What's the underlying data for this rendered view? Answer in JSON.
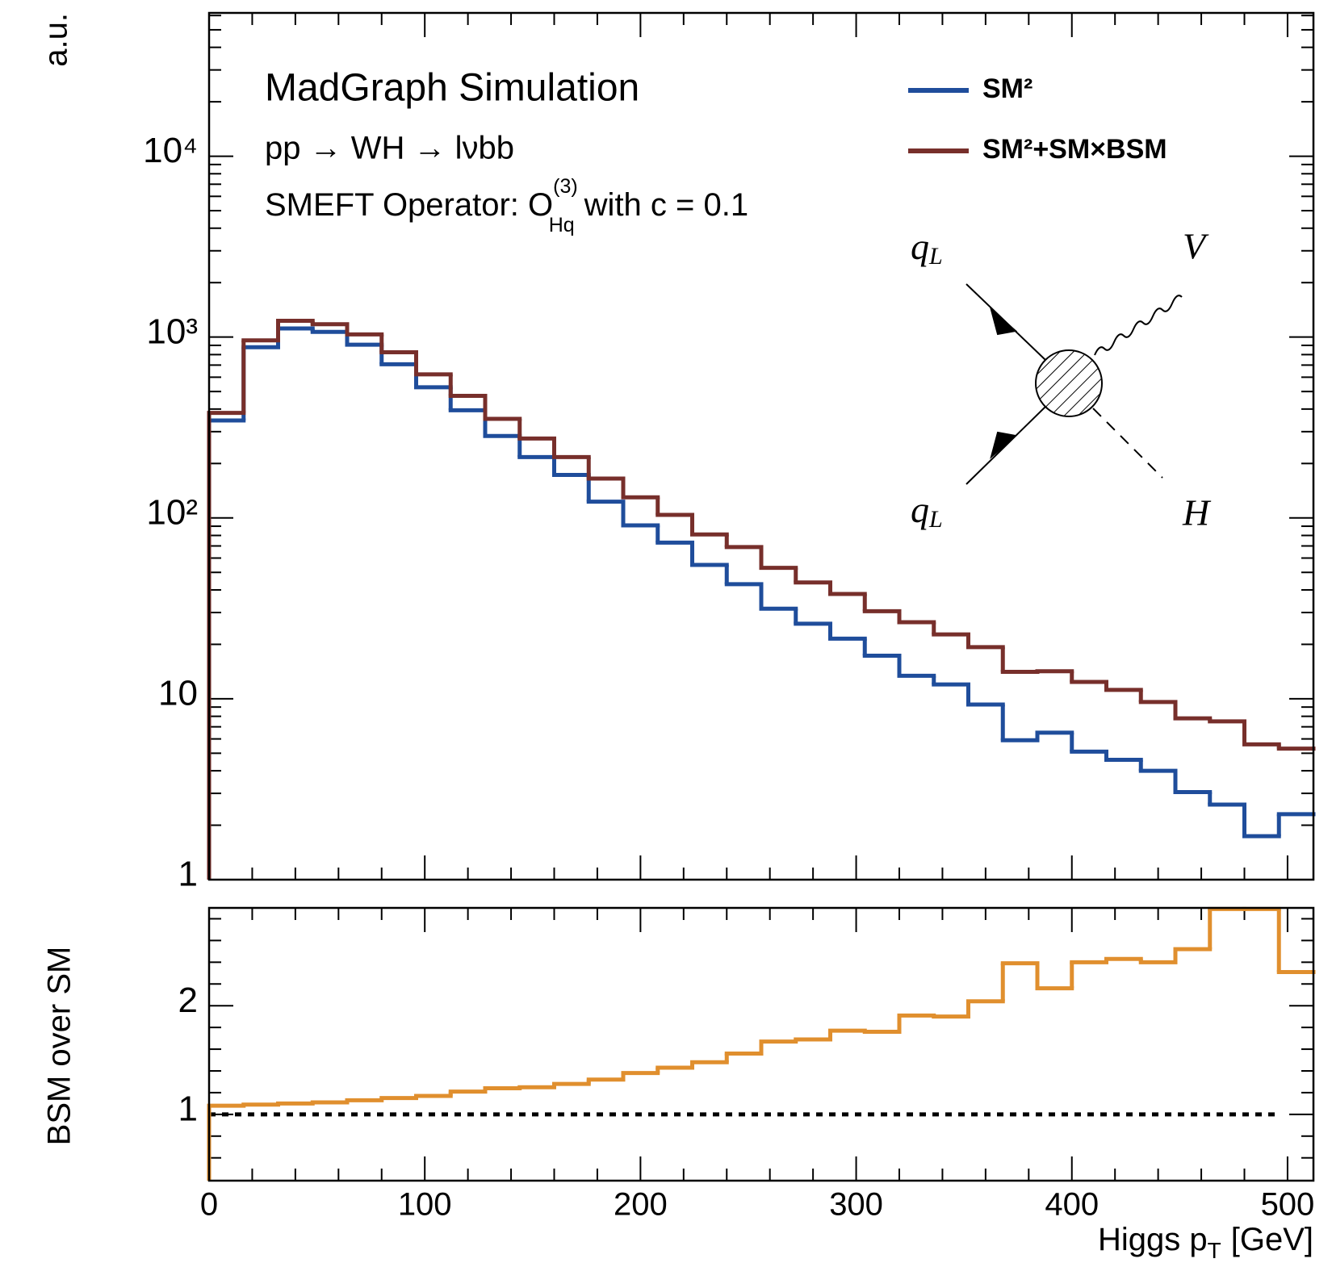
{
  "chart_data": [
    {
      "type": "histogram",
      "title": "MadGraph Simulation",
      "annotations": {
        "process": "pp → WH → lνbb",
        "operator": {
          "text": "SMEFT Operator: O",
          "superscript": "(3)",
          "subscript": "Hq",
          "tail": "with c = 0.1"
        }
      },
      "diagram_labels": [
        {
          "main": "q",
          "sub": "L"
        },
        {
          "main": "V"
        },
        {
          "main": "q",
          "sub": "L"
        },
        {
          "main": "H"
        }
      ],
      "ylabel": "a.u.",
      "bins": [
        0,
        16,
        32,
        48,
        64,
        80,
        96,
        112,
        128,
        144,
        160,
        176,
        192,
        208,
        224,
        240,
        256,
        272,
        288,
        304,
        320,
        336,
        352,
        368,
        384,
        400,
        416,
        432,
        448,
        464,
        480,
        496,
        512
      ],
      "series": [
        {
          "name": "SM²",
          "color": "#1f4d9b",
          "values": [
            346,
            879,
            1116,
            1069,
            908,
            707,
            528,
            394,
            284,
            217,
            173,
            123,
            91,
            73,
            55,
            43,
            31.5,
            26,
            21.5,
            17.3,
            13.4,
            12,
            9.3,
            5.9,
            6.5,
            5.1,
            4.6,
            4.0,
            3.05,
            2.6,
            1.74,
            2.3
          ]
        },
        {
          "name": "SM²+SM×BSM",
          "color": "#772f2b",
          "values": [
            381,
            959,
            1230,
            1178,
            1035,
            824,
            622,
            473,
            353,
            275,
            217,
            165,
            130,
            104,
            81,
            69,
            53,
            44,
            38,
            30.5,
            26.5,
            22.7,
            19.3,
            14.1,
            14.2,
            12.4,
            11.2,
            9.6,
            7.8,
            7.5,
            5.6,
            5.3
          ]
        }
      ],
      "xlim": [
        0,
        512
      ],
      "xticks": [
        0,
        100,
        200,
        300,
        400,
        500
      ],
      "xminorticks": [
        20,
        40,
        60,
        80,
        120,
        140,
        160,
        180,
        220,
        240,
        260,
        280,
        320,
        340,
        360,
        380,
        420,
        440,
        460,
        480
      ],
      "ylim": [
        1,
        62000
      ],
      "log_y": true,
      "yticks": [
        1,
        10,
        {
          "value": 100,
          "label": "10²"
        },
        {
          "value": 1000,
          "label": "10³"
        },
        {
          "value": 10000,
          "label": "10⁴"
        }
      ],
      "yminorticks": [
        2,
        3,
        4,
        5,
        6,
        7,
        8,
        9,
        20,
        30,
        40,
        50,
        60,
        70,
        80,
        90,
        200,
        300,
        400,
        500,
        600,
        700,
        800,
        900,
        2000,
        3000,
        4000,
        5000,
        6000,
        7000,
        8000,
        9000,
        20000,
        30000,
        40000,
        50000,
        60000
      ]
    },
    {
      "type": "histogram",
      "ylabel": "BSM over SM",
      "xlabel": {
        "main": "Higgs p",
        "sub": "T",
        "tail": "[GeV]"
      },
      "bins": [
        0,
        16,
        32,
        48,
        64,
        80,
        96,
        112,
        128,
        144,
        160,
        176,
        192,
        208,
        224,
        240,
        256,
        272,
        288,
        304,
        320,
        336,
        352,
        368,
        384,
        400,
        416,
        432,
        448,
        464,
        480,
        496,
        512
      ],
      "series": [
        {
          "color": "#e08f2e",
          "values": [
            1.08,
            1.09,
            1.1,
            1.11,
            1.13,
            1.15,
            1.17,
            1.21,
            1.24,
            1.25,
            1.28,
            1.32,
            1.38,
            1.43,
            1.48,
            1.56,
            1.67,
            1.69,
            1.77,
            1.76,
            1.91,
            1.9,
            2.04,
            2.39,
            2.16,
            2.4,
            2.43,
            2.4,
            2.52,
            2.89,
            2.89,
            2.31
          ]
        }
      ],
      "reference_line": {
        "value": 1,
        "x": [
          0,
          496
        ]
      },
      "xlim": [
        0,
        512
      ],
      "xticks": [
        0,
        100,
        200,
        300,
        400,
        500
      ],
      "xminorticks": [
        20,
        40,
        60,
        80,
        120,
        140,
        160,
        180,
        220,
        240,
        260,
        280,
        320,
        340,
        360,
        380,
        420,
        440,
        460,
        480
      ],
      "ylim": [
        0.39,
        2.9
      ],
      "log_y": false,
      "yticks": [
        1,
        2
      ],
      "yminorticks": [
        0.6,
        0.8,
        1.2,
        1.4,
        1.6,
        1.8,
        2.2,
        2.4,
        2.6,
        2.8
      ]
    }
  ]
}
